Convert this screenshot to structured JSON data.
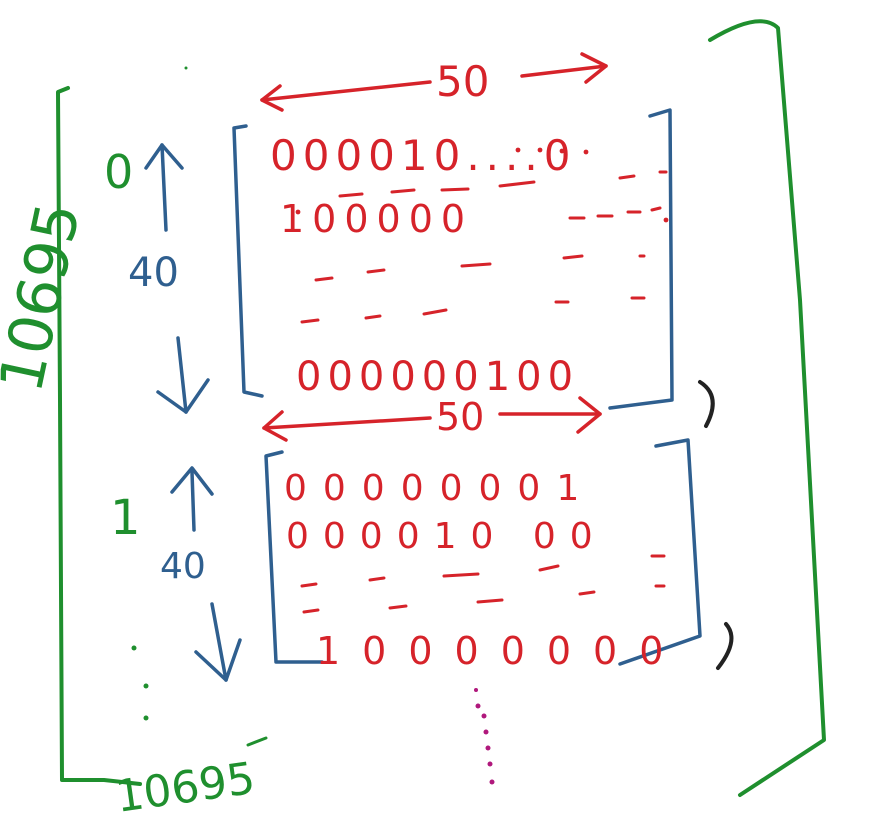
{
  "colors": {
    "outer_bracket": "#1f8f2e",
    "block_bracket": "#2f5f8f",
    "dimension_arrow": "#d6232a",
    "bits": "#d6232a",
    "continuation_dots": "#b0187c",
    "close_marks": "#222222"
  },
  "outer": {
    "side_label": "10695",
    "bottom_label": "10695"
  },
  "block1": {
    "index_label": "0",
    "width_label": "50",
    "height_label": "40",
    "rows": [
      "000010....0",
      "100000",
      "000000100"
    ]
  },
  "block2": {
    "index_label": "1",
    "width_label": "50",
    "height_label": "40",
    "rows": [
      "00000001",
      "000010 00",
      "10000000"
    ]
  }
}
